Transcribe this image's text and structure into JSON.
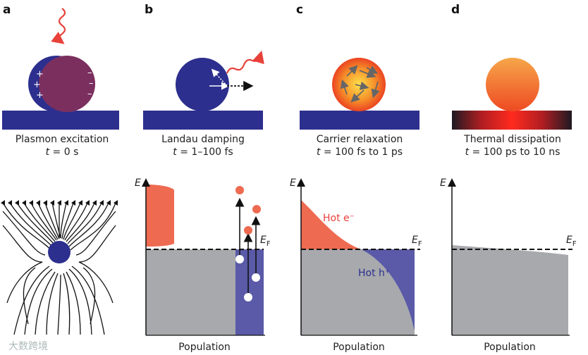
{
  "panels": [
    {
      "letter": "a",
      "title": "Plasmon excitation",
      "time_var": "t",
      "time_value": " = 0 s"
    },
    {
      "letter": "b",
      "title": "Landau damping",
      "time_var": "t",
      "time_value": " = 1–100 fs"
    },
    {
      "letter": "c",
      "title": "Carrier relaxation",
      "time_var": "t",
      "time_value": " = 100 fs to 1 ps"
    },
    {
      "letter": "d",
      "title": "Thermal dissipation",
      "time_var": "t",
      "time_value": " = 100 ps to 10 ns"
    }
  ],
  "axes": {
    "energy": "E",
    "population": "Population",
    "fermi": "E",
    "fermi_sub": "F"
  },
  "labels": {
    "hot_electrons": "Hot e⁻",
    "hot_holes": "Hot h⁺",
    "plus": "+",
    "minus": "–"
  },
  "colors": {
    "navy": "#2d2f8e",
    "red_orange": "#ee6a50",
    "gray": "#a7a9ac",
    "violet": "#5a5aa8"
  },
  "watermark": "大数跨境"
}
